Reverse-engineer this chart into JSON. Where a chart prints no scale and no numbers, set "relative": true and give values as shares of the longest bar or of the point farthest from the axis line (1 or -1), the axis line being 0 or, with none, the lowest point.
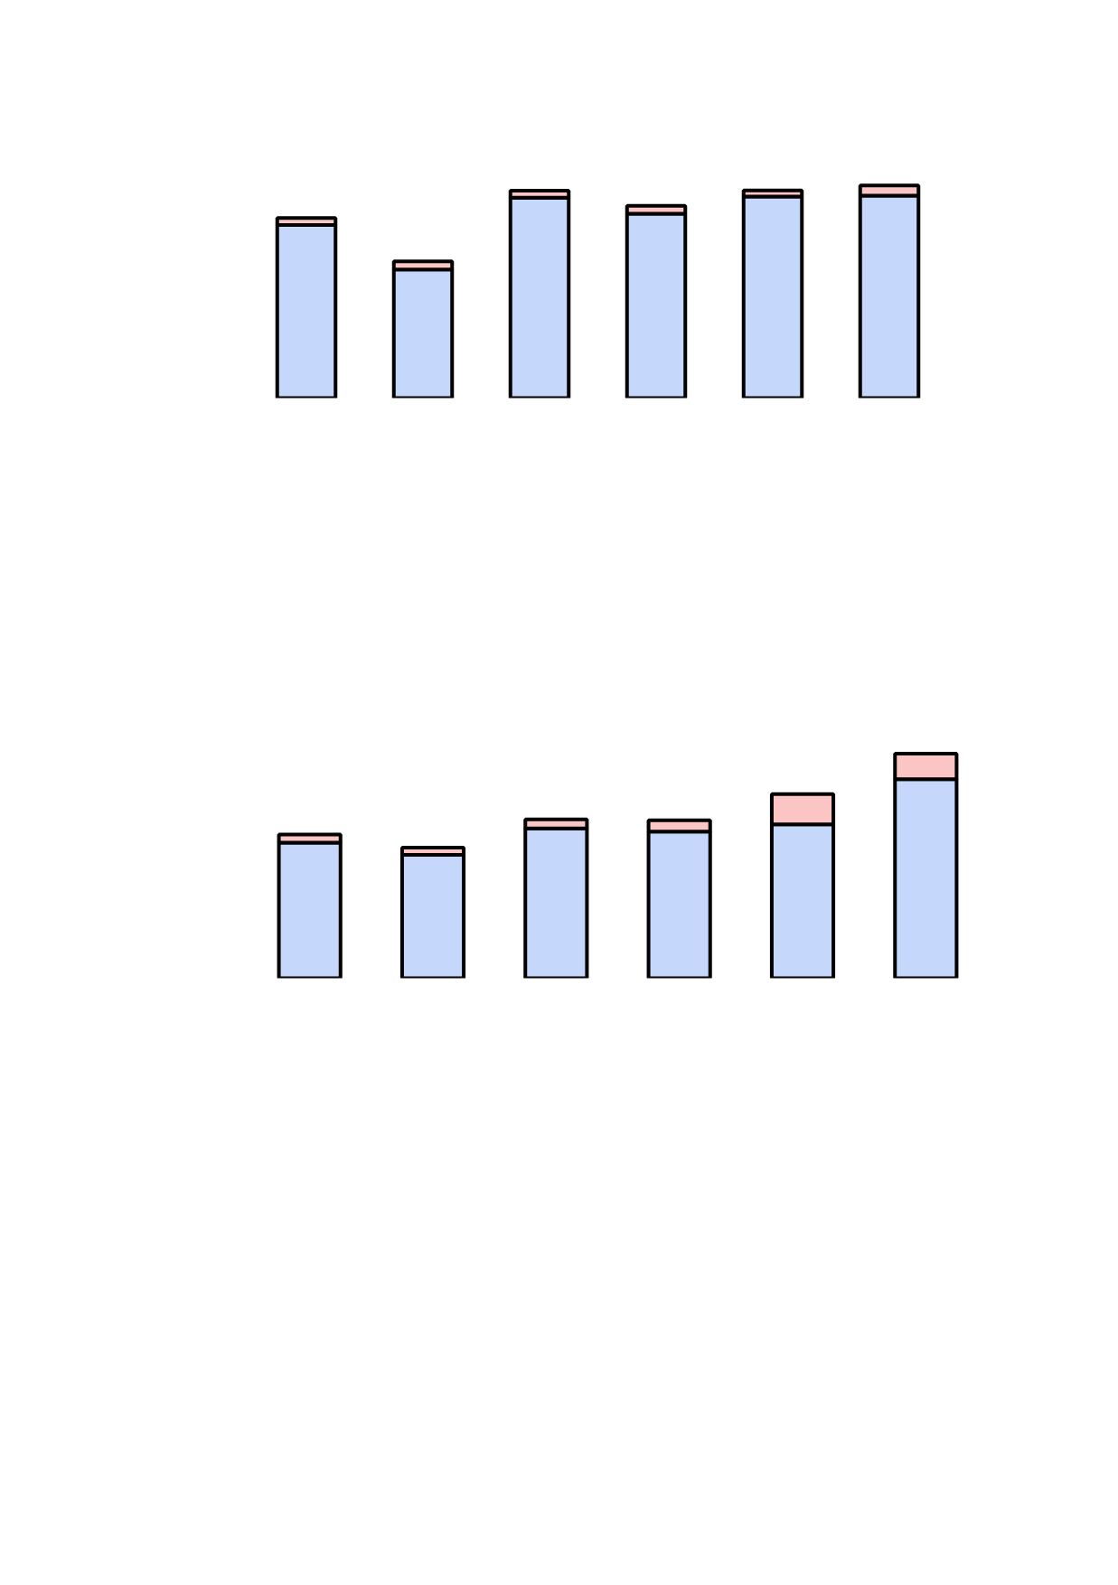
{
  "chart_data": [
    {
      "type": "bar",
      "stacked": true,
      "relative": true,
      "tick_labels": false,
      "categories": [
        null,
        null,
        null,
        null,
        null,
        null
      ],
      "series": [
        {
          "color": "#c5d8fc",
          "values": [
            0.814,
            0.605,
            0.943,
            0.867,
            0.948,
            0.952
          ]
        },
        {
          "color": "#fcc5c5",
          "values": [
            0.033,
            0.038,
            0.033,
            0.038,
            0.029,
            0.048
          ]
        }
      ]
    },
    {
      "type": "bar",
      "stacked": true,
      "relative": true,
      "tick_labels": false,
      "categories": [
        null,
        null,
        null,
        null,
        null,
        null
      ],
      "series": [
        {
          "color": "#c5d8fc",
          "values": [
            0.604,
            0.55,
            0.667,
            0.653,
            0.685,
            0.887
          ]
        },
        {
          "color": "#fcc5c5",
          "values": [
            0.036,
            0.032,
            0.041,
            0.05,
            0.135,
            0.113
          ]
        }
      ]
    }
  ]
}
